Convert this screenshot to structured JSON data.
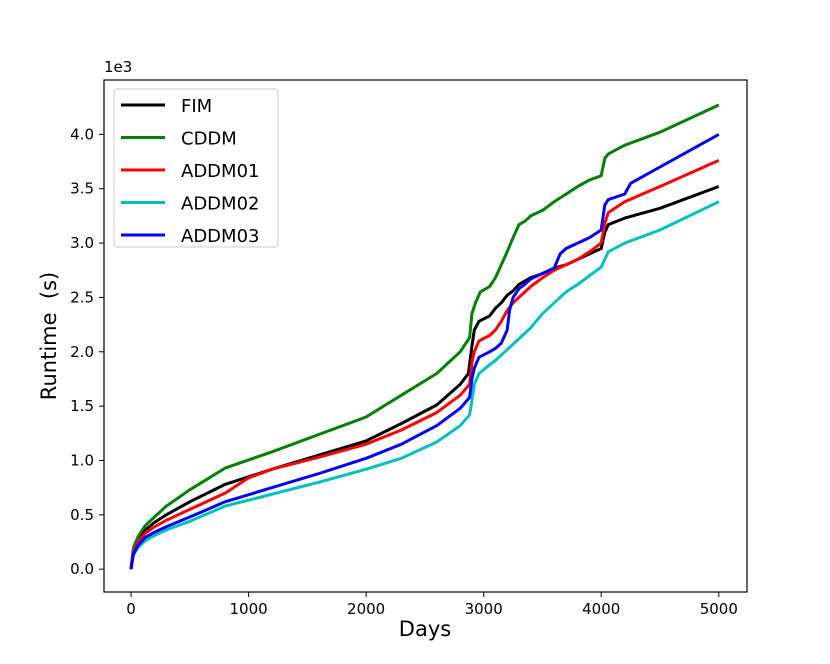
{
  "chart_data": {
    "type": "line",
    "title": "",
    "xlabel": "Days",
    "ylabel": "Runtime  (s)",
    "offset_label": "1e3",
    "xlim": [
      -230,
      5240
    ],
    "ylim": [
      -0.21,
      4.5
    ],
    "xticks": [
      0,
      1000,
      2000,
      3000,
      4000,
      5000
    ],
    "xtick_labels": [
      "0",
      "1000",
      "2000",
      "3000",
      "4000",
      "5000"
    ],
    "yticks": [
      0.0,
      0.5,
      1.0,
      1.5,
      2.0,
      2.5,
      3.0,
      3.5,
      4.0
    ],
    "ytick_labels": [
      "0.0",
      "0.5",
      "1.0",
      "1.5",
      "2.0",
      "2.5",
      "3.0",
      "3.5",
      "4.0"
    ],
    "grid": false,
    "legend_position": "top-left",
    "series": [
      {
        "name": "FIM",
        "color": "#000000",
        "x": [
          0,
          20,
          60,
          120,
          200,
          300,
          500,
          800,
          1200,
          1600,
          2000,
          2300,
          2600,
          2800,
          2870,
          2900,
          2920,
          2960,
          3050,
          3100,
          3150,
          3200,
          3250,
          3300,
          3350,
          3400,
          3500,
          3600,
          3700,
          3800,
          3900,
          4000,
          4030,
          4060,
          4200,
          4500,
          5000
        ],
        "y": [
          0.0,
          0.17,
          0.27,
          0.36,
          0.43,
          0.5,
          0.62,
          0.78,
          0.92,
          1.05,
          1.18,
          1.34,
          1.51,
          1.7,
          1.8,
          2.05,
          2.2,
          2.28,
          2.33,
          2.4,
          2.45,
          2.52,
          2.56,
          2.62,
          2.65,
          2.68,
          2.72,
          2.77,
          2.8,
          2.85,
          2.9,
          2.95,
          3.1,
          3.17,
          3.23,
          3.32,
          3.52
        ]
      },
      {
        "name": "CDDM",
        "color": "#008000",
        "x": [
          0,
          20,
          60,
          120,
          200,
          300,
          500,
          800,
          1200,
          1600,
          2000,
          2300,
          2600,
          2800,
          2880,
          2900,
          2930,
          2970,
          3050,
          3100,
          3150,
          3200,
          3250,
          3300,
          3350,
          3400,
          3500,
          3600,
          3700,
          3800,
          3900,
          4000,
          4030,
          4060,
          4200,
          4500,
          5000
        ],
        "y": [
          0.0,
          0.2,
          0.3,
          0.4,
          0.48,
          0.58,
          0.73,
          0.93,
          1.08,
          1.24,
          1.4,
          1.6,
          1.8,
          2.0,
          2.13,
          2.35,
          2.45,
          2.55,
          2.6,
          2.68,
          2.8,
          2.92,
          3.05,
          3.17,
          3.2,
          3.25,
          3.3,
          3.38,
          3.45,
          3.52,
          3.58,
          3.62,
          3.78,
          3.82,
          3.9,
          4.02,
          4.27
        ]
      },
      {
        "name": "ADDM01",
        "color": "#ff0000",
        "x": [
          0,
          20,
          60,
          120,
          200,
          300,
          500,
          800,
          1000,
          1200,
          1600,
          2000,
          2300,
          2600,
          2800,
          2880,
          2900,
          2920,
          2960,
          3050,
          3100,
          3150,
          3200,
          3250,
          3300,
          3350,
          3400,
          3500,
          3600,
          3700,
          3800,
          3900,
          4000,
          4030,
          4060,
          4200,
          4500,
          5000
        ],
        "y": [
          0.0,
          0.16,
          0.25,
          0.33,
          0.39,
          0.45,
          0.55,
          0.7,
          0.84,
          0.92,
          1.03,
          1.15,
          1.28,
          1.44,
          1.6,
          1.7,
          1.9,
          2.0,
          2.1,
          2.15,
          2.2,
          2.28,
          2.38,
          2.45,
          2.5,
          2.55,
          2.6,
          2.68,
          2.75,
          2.8,
          2.85,
          2.92,
          3.0,
          3.18,
          3.28,
          3.38,
          3.52,
          3.76
        ]
      },
      {
        "name": "ADDM02",
        "color": "#00bfbf",
        "x": [
          0,
          20,
          60,
          120,
          200,
          300,
          500,
          800,
          1200,
          1600,
          2000,
          2300,
          2600,
          2800,
          2880,
          2900,
          2920,
          2960,
          3050,
          3100,
          3200,
          3300,
          3400,
          3500,
          3600,
          3700,
          3800,
          3900,
          4000,
          4030,
          4060,
          4200,
          4500,
          5000
        ],
        "y": [
          0.0,
          0.13,
          0.2,
          0.26,
          0.31,
          0.36,
          0.44,
          0.58,
          0.69,
          0.8,
          0.92,
          1.02,
          1.17,
          1.32,
          1.42,
          1.55,
          1.7,
          1.8,
          1.88,
          1.92,
          2.02,
          2.12,
          2.22,
          2.35,
          2.45,
          2.55,
          2.62,
          2.7,
          2.78,
          2.85,
          2.92,
          3.0,
          3.12,
          3.38
        ]
      },
      {
        "name": "ADDM03",
        "color": "#0000ff",
        "x": [
          0,
          20,
          60,
          120,
          200,
          300,
          500,
          800,
          1200,
          1600,
          2000,
          2300,
          2600,
          2800,
          2880,
          2900,
          2920,
          2960,
          3050,
          3100,
          3150,
          3200,
          3220,
          3250,
          3300,
          3350,
          3400,
          3500,
          3600,
          3650,
          3700,
          3800,
          3900,
          4000,
          4030,
          4060,
          4200,
          4250,
          4500,
          5000
        ],
        "y": [
          0.0,
          0.14,
          0.22,
          0.29,
          0.34,
          0.39,
          0.48,
          0.62,
          0.75,
          0.88,
          1.02,
          1.15,
          1.32,
          1.48,
          1.58,
          1.75,
          1.85,
          1.95,
          2.0,
          2.03,
          2.08,
          2.2,
          2.38,
          2.5,
          2.58,
          2.62,
          2.67,
          2.72,
          2.77,
          2.9,
          2.95,
          3.0,
          3.05,
          3.12,
          3.35,
          3.4,
          3.45,
          3.55,
          3.7,
          4.0
        ]
      }
    ]
  }
}
